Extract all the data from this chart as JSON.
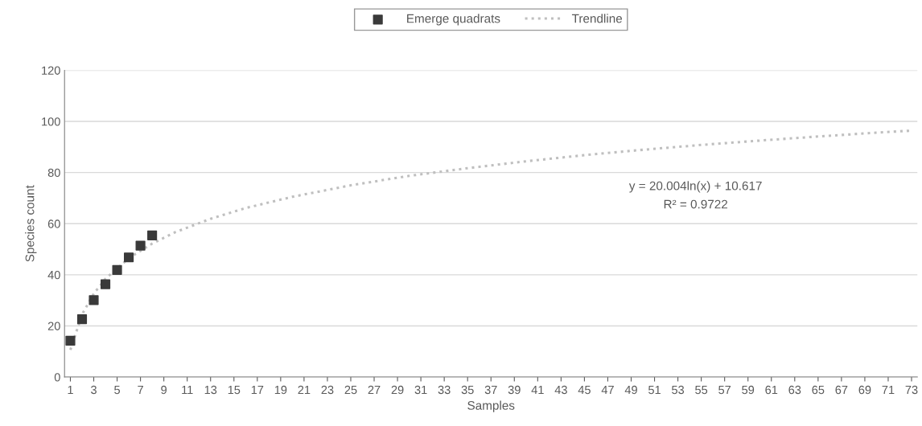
{
  "chart_data": {
    "type": "scatter",
    "xlabel": "Samples",
    "ylabel": "Species count",
    "xlim": [
      0.5,
      73.5
    ],
    "xticks": [
      1,
      3,
      5,
      7,
      9,
      11,
      13,
      15,
      17,
      19,
      21,
      23,
      25,
      27,
      29,
      31,
      33,
      35,
      37,
      39,
      41,
      43,
      45,
      47,
      49,
      51,
      53,
      55,
      57,
      59,
      61,
      63,
      65,
      67,
      69,
      71,
      73
    ],
    "ylim": [
      0,
      120
    ],
    "yticks": [
      0,
      20,
      40,
      60,
      80,
      100,
      120
    ],
    "grid": "y",
    "legend": "top",
    "annotations": [
      "y = 20.004ln(x) + 10.617",
      "R² = 0.9722"
    ],
    "series": [
      {
        "name": "Emerge quadrats",
        "marker": "square",
        "color": "#3a3a3a",
        "x": [
          1,
          2,
          3,
          4,
          5,
          6,
          7,
          8
        ],
        "values": [
          14.2,
          22.6,
          30.1,
          36.3,
          41.9,
          46.8,
          51.4,
          55.4
        ]
      },
      {
        "name": "Trendline",
        "type": "line",
        "line_style": "dotted",
        "color": "#bfbfbf",
        "x": [
          1,
          2,
          3,
          4,
          6,
          8,
          10,
          13,
          16,
          20,
          25,
          30,
          35,
          40,
          45,
          50,
          55,
          60,
          65,
          70,
          73
        ],
        "values": [
          10.6,
          24.5,
          32.6,
          38.4,
          46.5,
          52.2,
          56.7,
          61.9,
          66.1,
          70.5,
          75.0,
          78.7,
          81.7,
          84.4,
          86.8,
          88.9,
          90.8,
          92.5,
          94.1,
          95.6,
          96.4
        ]
      }
    ]
  }
}
